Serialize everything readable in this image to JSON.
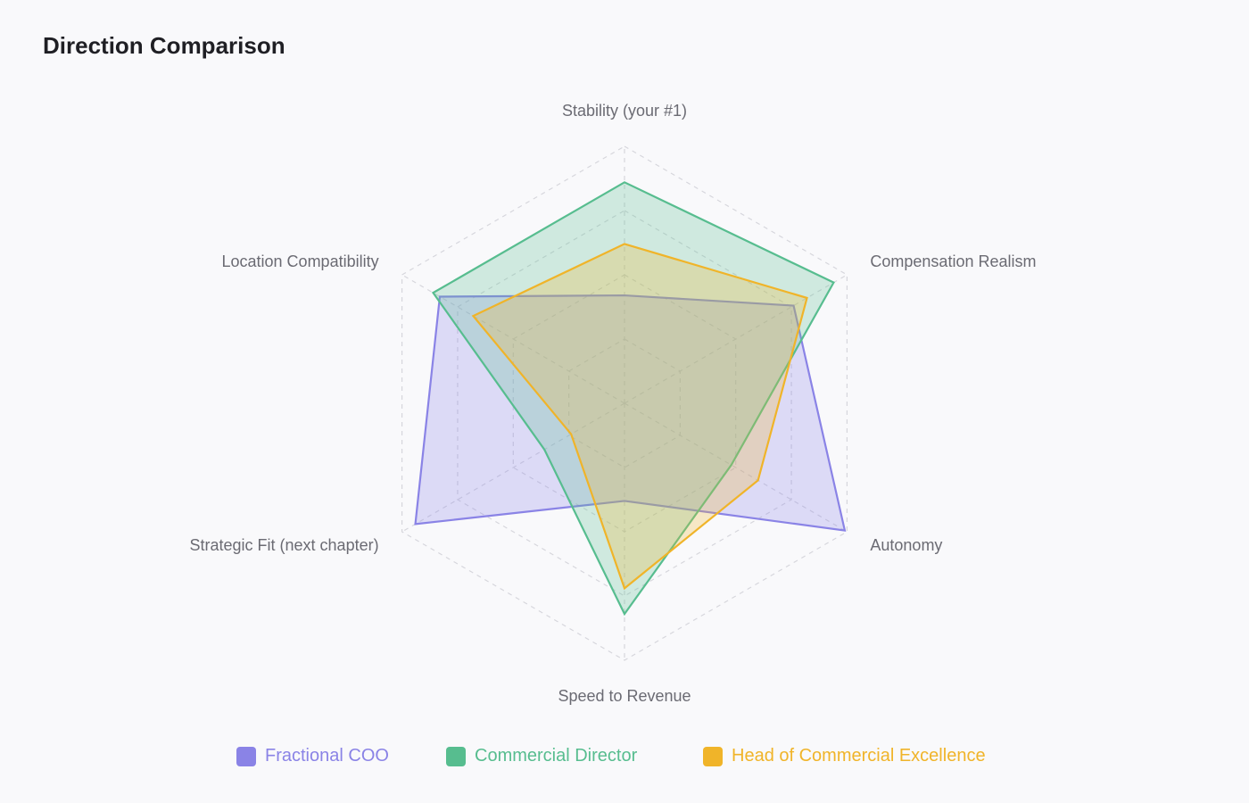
{
  "chart_data": {
    "type": "radar",
    "title": "Direction Comparison",
    "axes": [
      "Stability (your #1)",
      "Compensation Realism",
      "Autonomy",
      "Speed to Revenue",
      "Strategic Fit (next chapter)",
      "Location Compatibility"
    ],
    "range": [
      0,
      10
    ],
    "grid": true,
    "legend_position": "bottom",
    "series": [
      {
        "name": "Fractional COO",
        "color": "#8a83e6",
        "values": [
          4.2,
          7.6,
          9.9,
          3.8,
          9.4,
          8.3
        ]
      },
      {
        "name": "Commercial Director",
        "color": "#57bd8f",
        "values": [
          8.6,
          9.4,
          4.8,
          8.2,
          3.6,
          8.6
        ]
      },
      {
        "name": "Head of Commercial Excellence",
        "color": "#f0b429",
        "values": [
          6.2,
          8.2,
          6.0,
          7.2,
          2.4,
          6.8
        ]
      }
    ]
  }
}
